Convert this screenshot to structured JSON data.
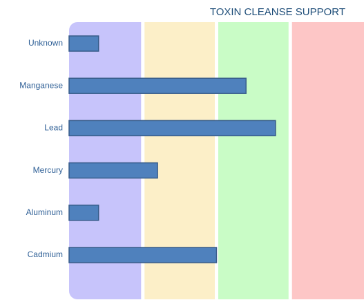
{
  "chart_data": {
    "type": "hbar",
    "title": "TOXIN CLEANSE SUPPORT",
    "categories": [
      "Unknown",
      "Manganese",
      "Lead",
      "Mercury",
      "Aluminum",
      "Cadmium"
    ],
    "values": [
      0.4,
      2.4,
      2.8,
      1.2,
      0.4,
      2.0
    ],
    "color": "#4f81bd",
    "xlim": [
      0,
      4
    ],
    "background_bands": [
      "#c7c4fb",
      "#fcefc8",
      "#c9fcc6",
      "#fdc6c6"
    ]
  }
}
